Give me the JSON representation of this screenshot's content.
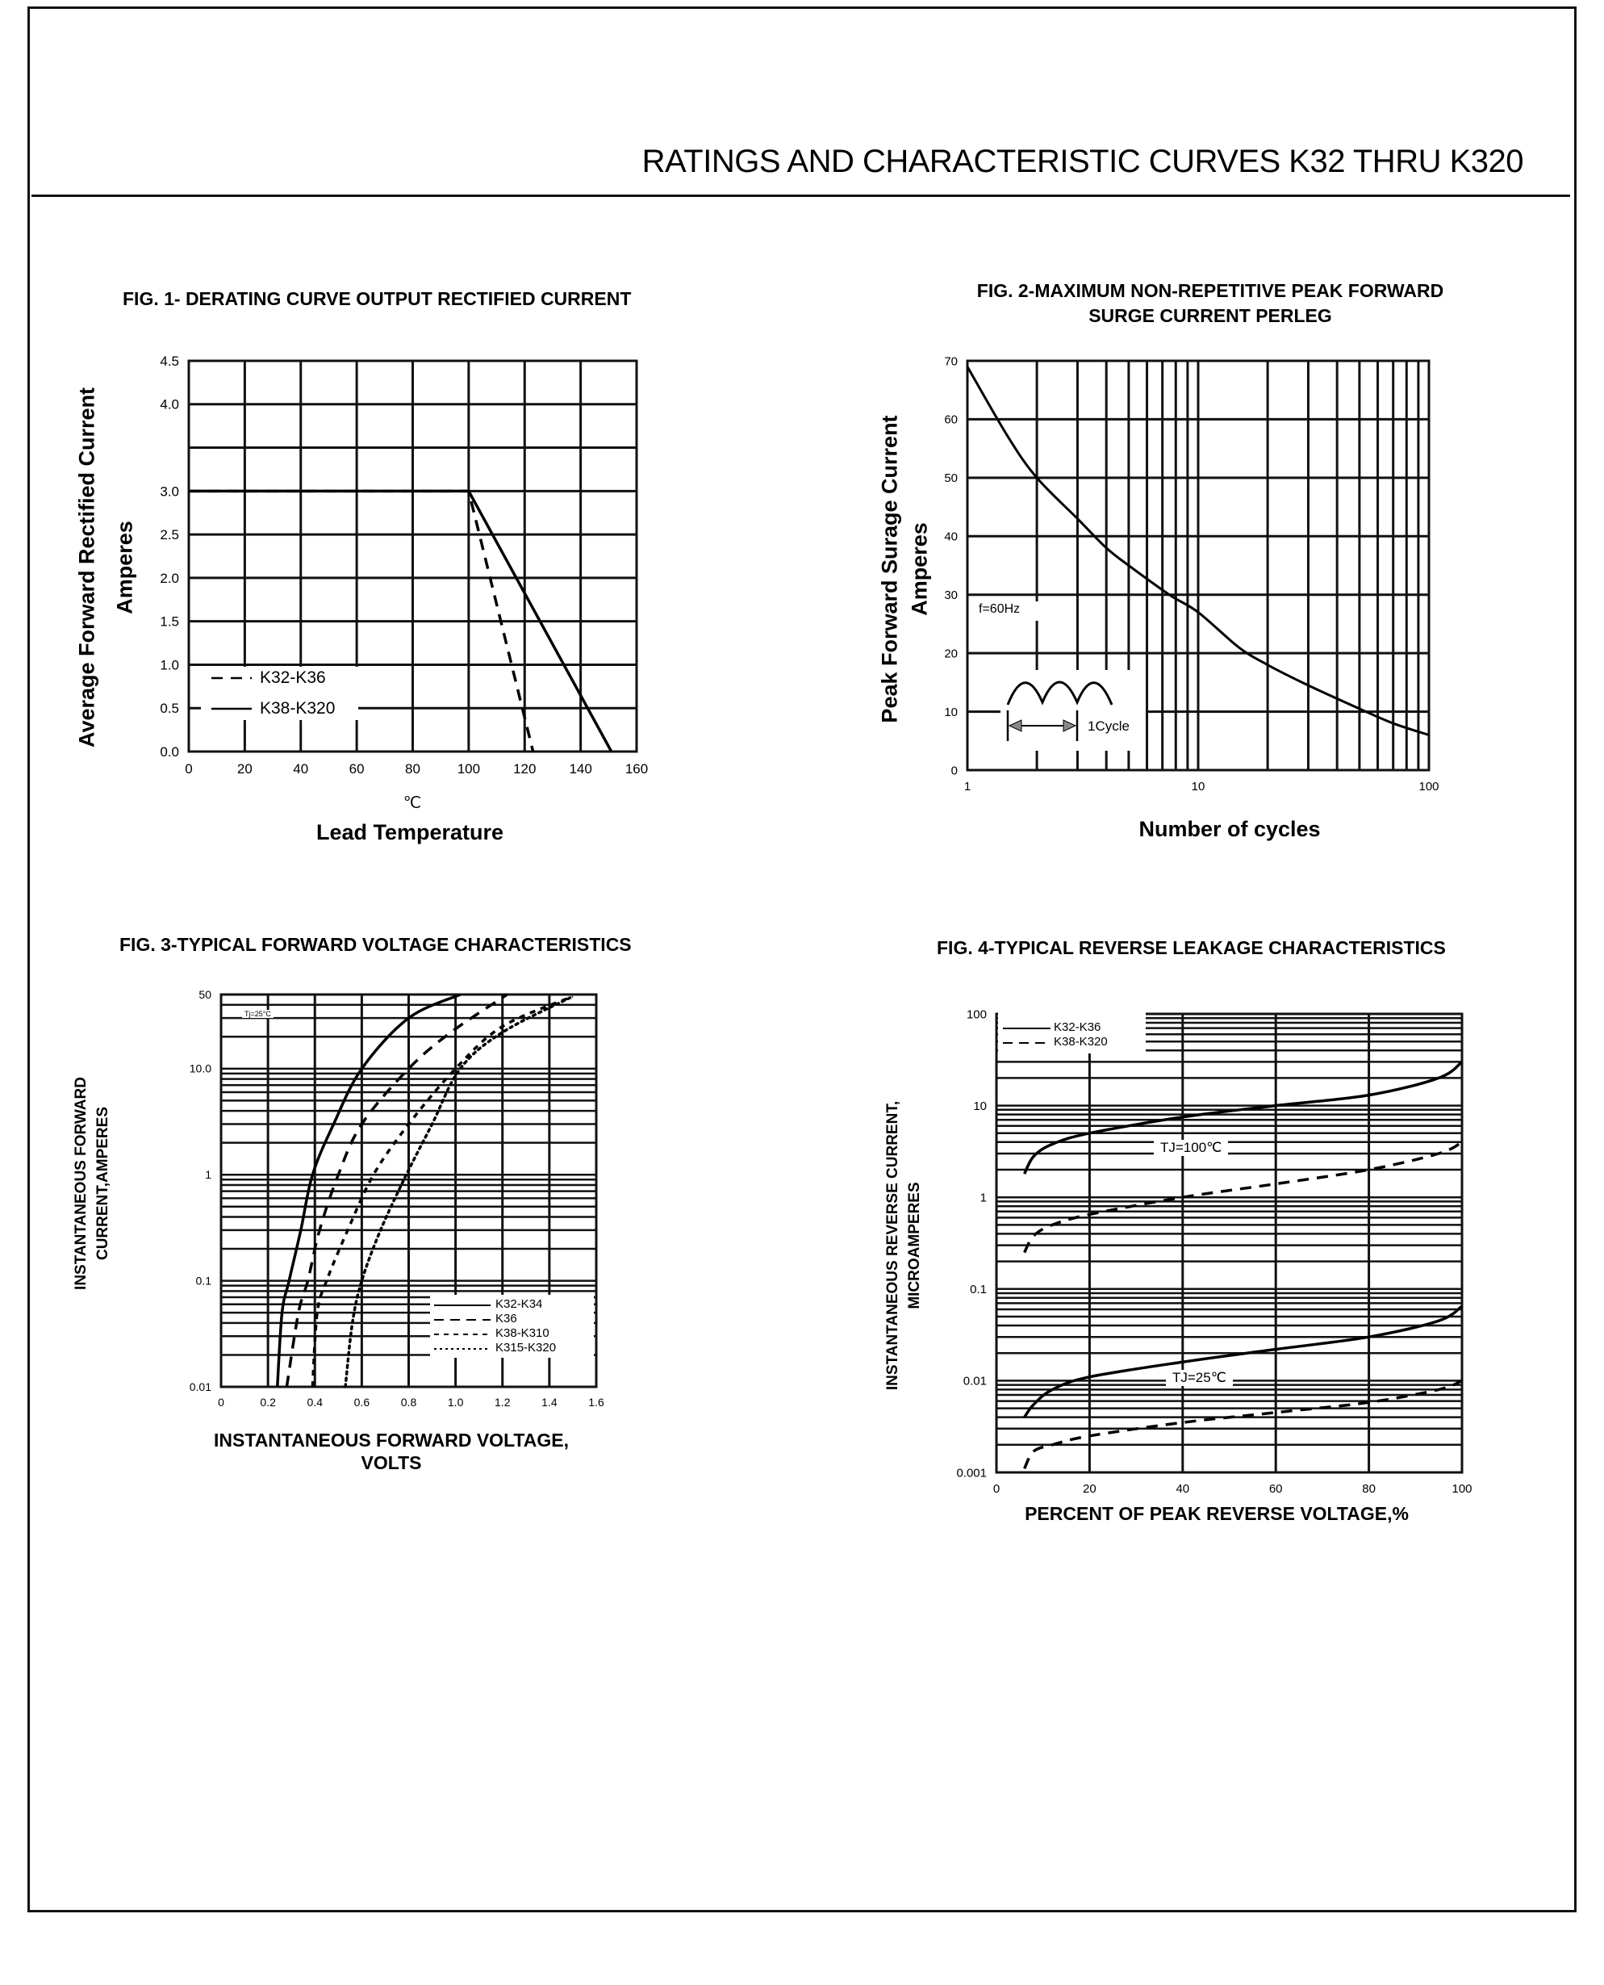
{
  "header": {
    "title": "RATINGS AND CHARACTERISTIC CURVES K32 THRU K320"
  },
  "chart_data": [
    {
      "type": "line",
      "title": "FIG. 1- DERATING CURVE OUTPUT RECTIFIED CURRENT",
      "ylabel": "Average Forward Rectified Current",
      "ylabel2": "Amperes",
      "xunit": "℃",
      "xlabel": "Lead Temperature",
      "xscale": "linear",
      "yscale": "linear",
      "xlim": [
        0,
        160
      ],
      "ylim": [
        0,
        4.5
      ],
      "xticks": [
        0,
        20,
        40,
        60,
        80,
        100,
        120,
        140,
        160
      ],
      "xtick_labels": [
        "0",
        "20",
        "40",
        "60",
        "80",
        "100",
        "120",
        "140",
        "160"
      ],
      "yticks": [
        0,
        0.5,
        1,
        1.5,
        2,
        2.5,
        3,
        3.5,
        4,
        4.5
      ],
      "ytick_labels": [
        "0.0",
        "0.5",
        "1.0",
        "1.5",
        "2.0",
        "2.5",
        "3.0",
        "",
        "4.0",
        "4.5"
      ],
      "grid": true,
      "legend": "bottom-left",
      "series": [
        {
          "name": "K32-K36",
          "style": "dashed",
          "points": [
            [
              0,
              3
            ],
            [
              100,
              3
            ],
            [
              123,
              0
            ]
          ]
        },
        {
          "name": "K38-K320",
          "style": "solid",
          "points": [
            [
              0,
              3
            ],
            [
              100,
              3
            ],
            [
              151,
              0
            ]
          ]
        }
      ]
    },
    {
      "type": "line",
      "title": "FIG. 2-MAXIMUM NON-REPETITIVE PEAK FORWARD",
      "title2": "SURGE CURRENT PERLEG",
      "ylabel": "Peak Forward Surage Current",
      "ylabel2": "Amperes",
      "xlabel": "Number of cycles",
      "xscale": "log",
      "yscale": "linear",
      "xlim": [
        1,
        100
      ],
      "ylim": [
        0,
        70
      ],
      "xticks": [
        1,
        10,
        100
      ],
      "xtick_labels": [
        "1",
        "10",
        "100"
      ],
      "yticks": [
        0,
        10,
        20,
        30,
        40,
        50,
        60,
        70
      ],
      "ytick_labels": [
        "0",
        "10",
        "20",
        "30",
        "40",
        "50",
        "60",
        "70"
      ],
      "grid": true,
      "annotations": {
        "frequency": "f=60Hz",
        "cycle": "1Cycle"
      },
      "series": [
        {
          "style": "solid",
          "points": [
            [
              1,
              69
            ],
            [
              1.5,
              57
            ],
            [
              2,
              50
            ],
            [
              3,
              43
            ],
            [
              4,
              38
            ],
            [
              5,
              35
            ],
            [
              7.5,
              30
            ],
            [
              10,
              27
            ],
            [
              15,
              21
            ],
            [
              20,
              18
            ],
            [
              30,
              14.5
            ],
            [
              50,
              10.5
            ],
            [
              70,
              8
            ],
            [
              100,
              6
            ]
          ]
        }
      ]
    },
    {
      "type": "line",
      "title": "FIG. 3-TYPICAL FORWARD VOLTAGE CHARACTERISTICS",
      "ylabel": "INSTANTANEOUS FORWARD",
      "ylabel2": "CURRENT,AMPERES",
      "xlabel": "INSTANTANEOUS FORWARD VOLTAGE,",
      "xlabel2": "VOLTS",
      "condition": "Tj=25°C",
      "xscale": "linear",
      "yscale": "log",
      "xlim": [
        0,
        1.6
      ],
      "ylim": [
        0.01,
        50
      ],
      "xticks": [
        0,
        0.2,
        0.4,
        0.6,
        0.8,
        1.0,
        1.2,
        1.4,
        1.6
      ],
      "xtick_labels": [
        "0",
        "0.2",
        "0.4",
        "0.6",
        "0.8",
        "1.0",
        "1.2",
        "1.4",
        "1.6"
      ],
      "yticks": [
        0.01,
        0.1,
        1,
        10,
        50
      ],
      "ytick_labels": [
        "0.01",
        "0.1",
        "1",
        "10.0",
        "50"
      ],
      "grid": true,
      "legend": "bottom-right",
      "series": [
        {
          "name": "K32-K34",
          "style": "solid",
          "points": [
            [
              0.24,
              0.01
            ],
            [
              0.26,
              0.05
            ],
            [
              0.29,
              0.1
            ],
            [
              0.34,
              0.3
            ],
            [
              0.39,
              1
            ],
            [
              0.48,
              3
            ],
            [
              0.6,
              10
            ],
            [
              0.8,
              30
            ],
            [
              1.02,
              50
            ]
          ]
        },
        {
          "name": "K36",
          "style": "dashed",
          "points": [
            [
              0.28,
              0.01
            ],
            [
              0.33,
              0.05
            ],
            [
              0.37,
              0.1
            ],
            [
              0.42,
              0.3
            ],
            [
              0.5,
              1
            ],
            [
              0.6,
              3
            ],
            [
              0.8,
              10
            ],
            [
              0.98,
              22
            ],
            [
              1.22,
              50
            ]
          ]
        },
        {
          "name": "K38-K310",
          "style": "short-dashed",
          "points": [
            [
              0.39,
              0.01
            ],
            [
              0.41,
              0.05
            ],
            [
              0.45,
              0.1
            ],
            [
              0.54,
              0.3
            ],
            [
              0.65,
              1
            ],
            [
              0.8,
              3
            ],
            [
              1.0,
              10
            ],
            [
              1.2,
              25
            ],
            [
              1.5,
              48
            ]
          ]
        },
        {
          "name": "K315-K320",
          "style": "dotted",
          "points": [
            [
              0.53,
              0.01
            ],
            [
              0.56,
              0.04
            ],
            [
              0.6,
              0.1
            ],
            [
              0.68,
              0.3
            ],
            [
              0.79,
              1
            ],
            [
              0.9,
              3
            ],
            [
              1.02,
              10
            ],
            [
              1.2,
              22
            ],
            [
              1.5,
              48
            ]
          ]
        }
      ]
    },
    {
      "type": "line",
      "title": "FIG. 4-TYPICAL REVERSE LEAKAGE CHARACTERISTICS",
      "ylabel": "INSTANTANEOUS REVERSE CURRENT,",
      "ylabel2": "MICROAMPERES",
      "xlabel": "PERCENT OF PEAK REVERSE VOLTAGE,%",
      "xscale": "linear",
      "yscale": "log",
      "xlim": [
        0,
        100
      ],
      "ylim": [
        0.001,
        100
      ],
      "xticks": [
        0,
        20,
        40,
        60,
        80,
        100
      ],
      "xtick_labels": [
        "0",
        "20",
        "40",
        "60",
        "80",
        "100"
      ],
      "yticks": [
        0.001,
        0.01,
        0.1,
        1,
        10,
        100
      ],
      "ytick_labels": [
        "0.001",
        "0.01",
        "0.1",
        "1",
        "10",
        "100"
      ],
      "grid": true,
      "legend": "top-left",
      "annotations": {
        "tj_high": "TJ=100℃",
        "tj_low": "TJ=25℃"
      },
      "series": [
        {
          "name": "K32-K36",
          "condition": "TJ=100℃",
          "style": "solid",
          "points": [
            [
              6,
              1.8
            ],
            [
              8,
              2.8
            ],
            [
              12,
              3.8
            ],
            [
              20,
              5
            ],
            [
              40,
              7.5
            ],
            [
              60,
              10
            ],
            [
              80,
              13
            ],
            [
              95,
              20
            ],
            [
              100,
              30
            ]
          ]
        },
        {
          "name": "K38-K320",
          "condition": "TJ=100℃",
          "style": "dashed",
          "points": [
            [
              6,
              0.25
            ],
            [
              8,
              0.38
            ],
            [
              12,
              0.5
            ],
            [
              20,
              0.65
            ],
            [
              40,
              1.0
            ],
            [
              60,
              1.4
            ],
            [
              80,
              2
            ],
            [
              95,
              3
            ],
            [
              100,
              4
            ]
          ]
        },
        {
          "name": "K32-K36",
          "condition": "TJ=25℃",
          "style": "solid",
          "points": [
            [
              6,
              0.004
            ],
            [
              8,
              0.0055
            ],
            [
              12,
              0.008
            ],
            [
              20,
              0.011
            ],
            [
              40,
              0.016
            ],
            [
              60,
              0.022
            ],
            [
              80,
              0.03
            ],
            [
              95,
              0.045
            ],
            [
              100,
              0.065
            ]
          ]
        },
        {
          "name": "K38-K320",
          "condition": "TJ=25℃",
          "style": "dashed",
          "points": [
            [
              6,
              0.0011
            ],
            [
              8,
              0.0017
            ],
            [
              12,
              0.002
            ],
            [
              20,
              0.0025
            ],
            [
              40,
              0.0035
            ],
            [
              60,
              0.0045
            ],
            [
              80,
              0.0058
            ],
            [
              95,
              0.008
            ],
            [
              100,
              0.01
            ]
          ]
        }
      ]
    }
  ]
}
